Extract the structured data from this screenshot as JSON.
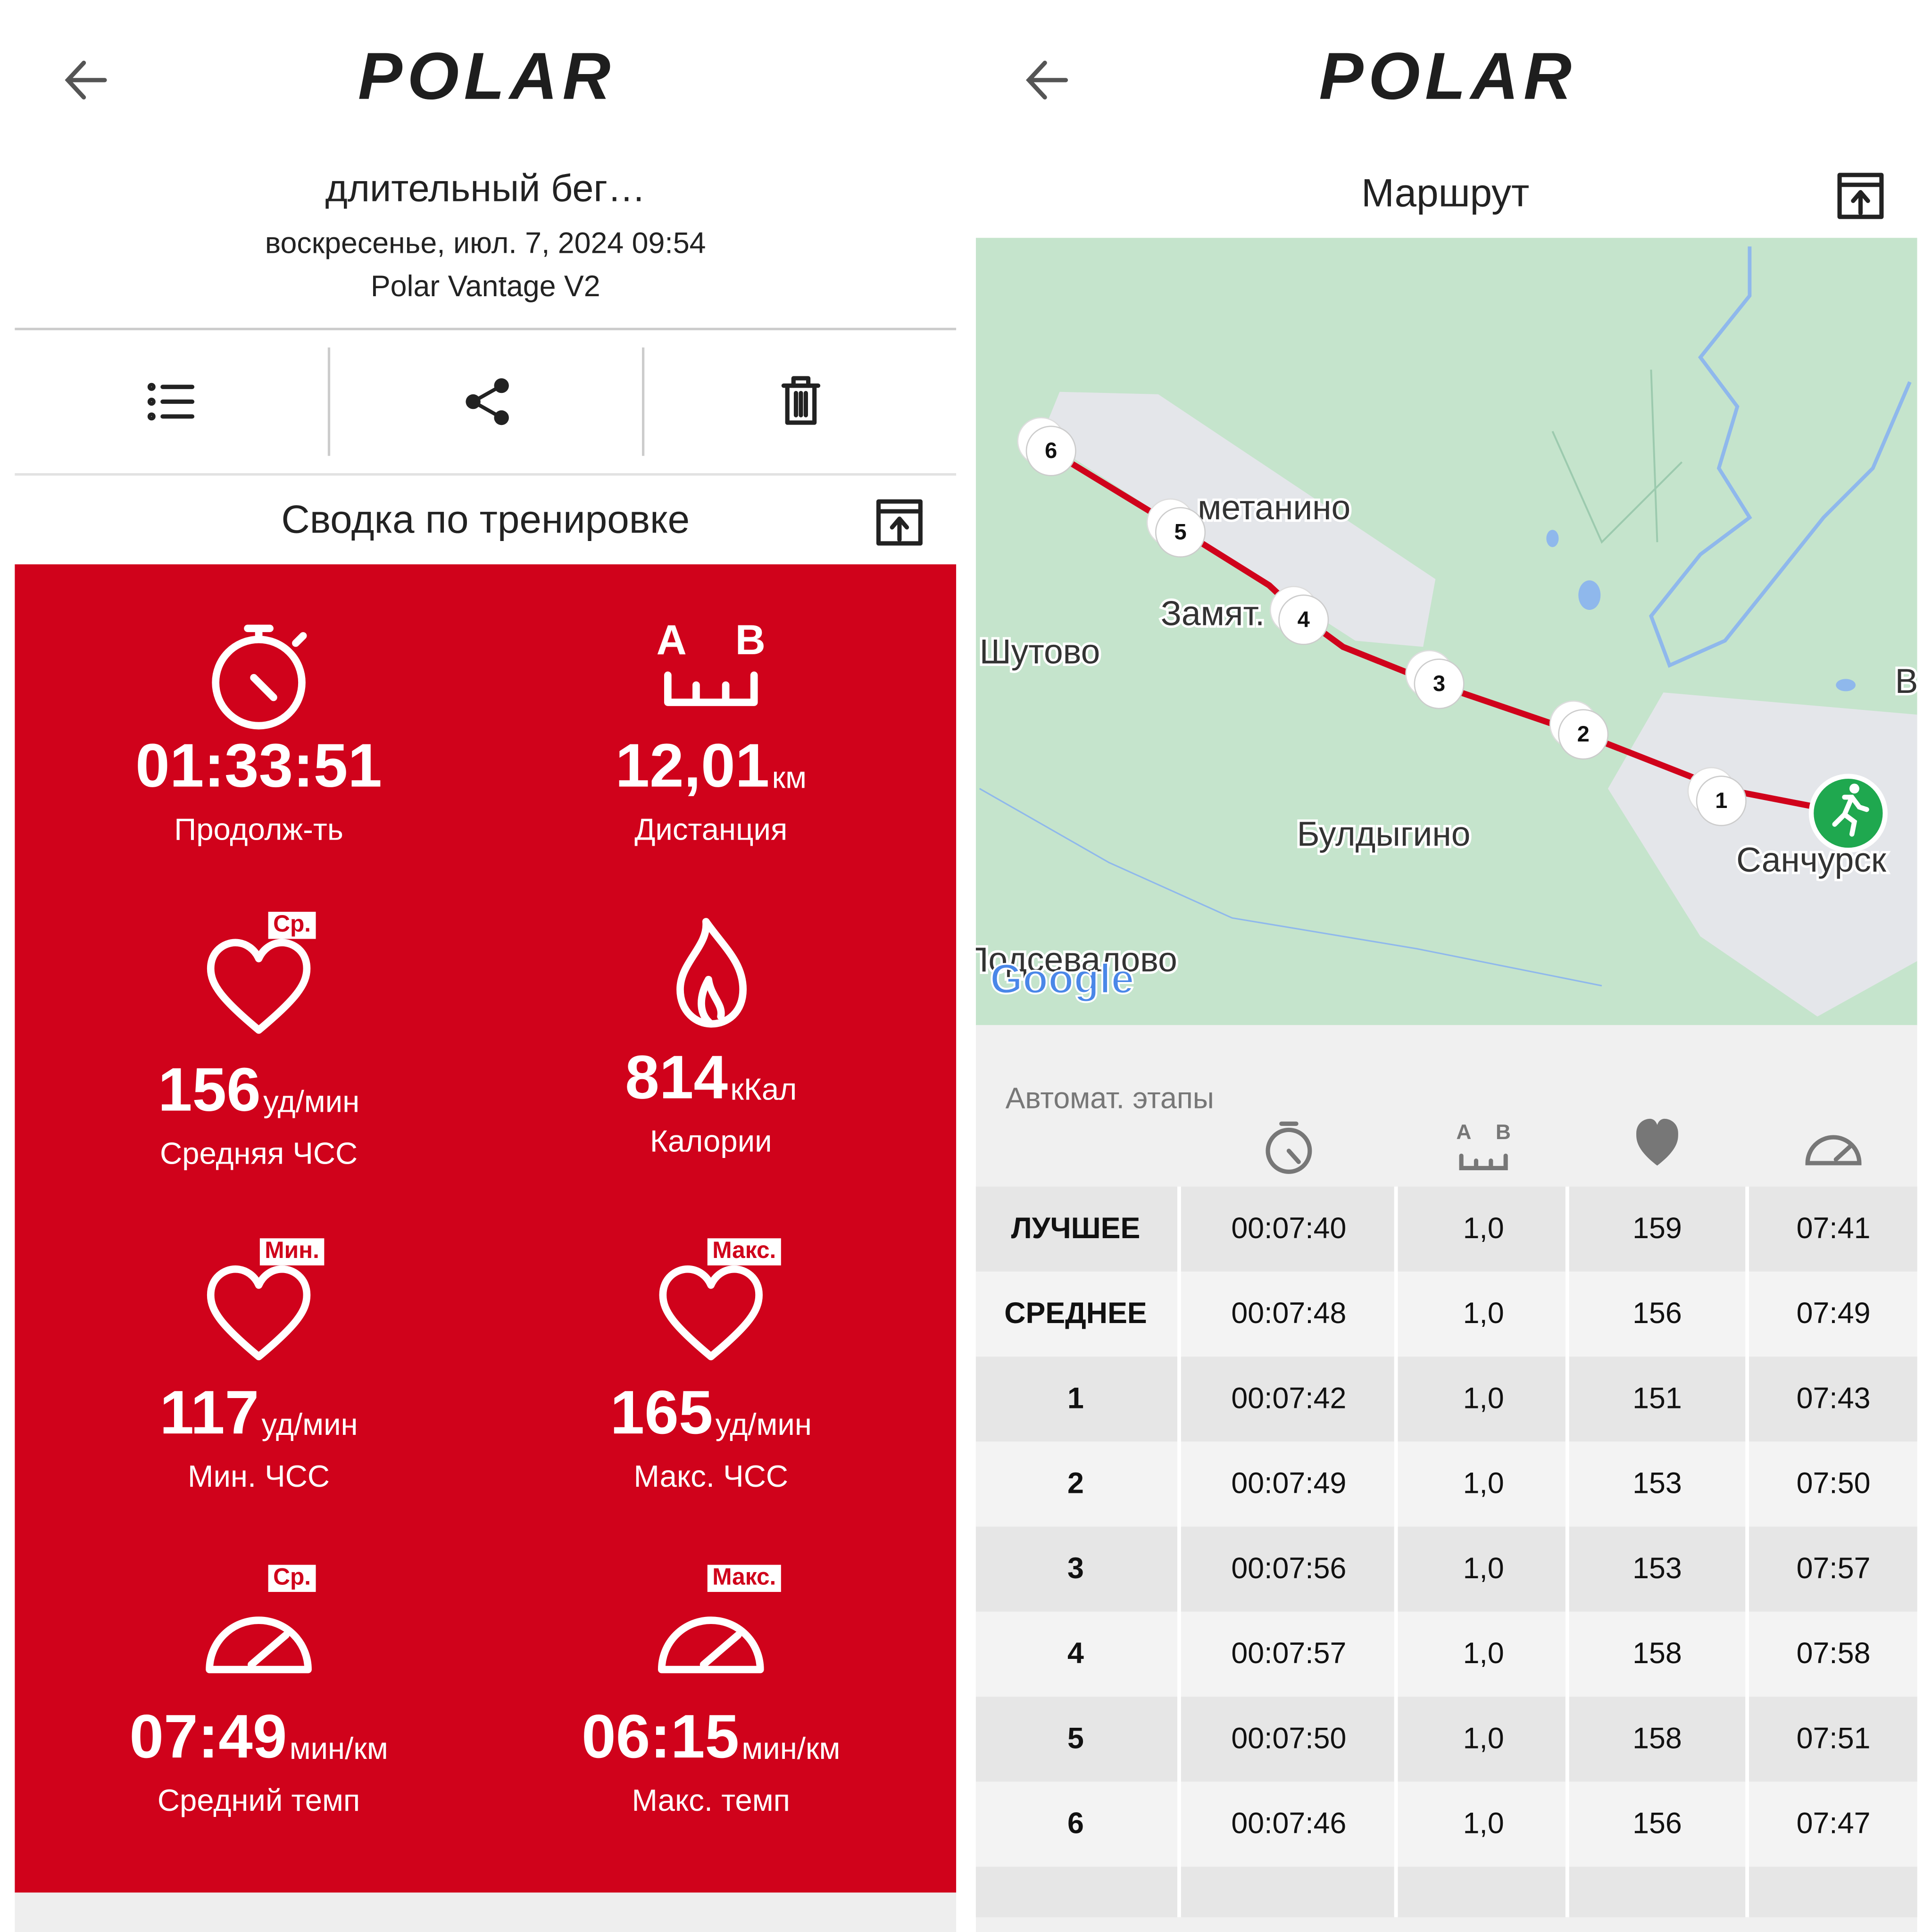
{
  "left": {
    "logo": "POLAR",
    "title": "длительный  бег…",
    "date": "воскресенье, июл. 7, 2024 09:54",
    "device": "Polar Vantage V2",
    "summary_title": "Сводка по тренировке",
    "stats": [
      {
        "value": "01:33:51",
        "label": "Продолж-ть"
      },
      {
        "icon_labels": [
          "A",
          "B"
        ],
        "value": "12,01",
        "unit": "км",
        "label": "Дистанция"
      },
      {
        "badge": "Ср.",
        "value": "156",
        "unit": "уд/мин",
        "label": "Средняя ЧСС"
      },
      {
        "value": "814",
        "unit": "кКал",
        "label": "Калории"
      },
      {
        "badge": "Мин.",
        "value": "117",
        "unit": "уд/мин",
        "label": "Мин. ЧСС"
      },
      {
        "badge": "Макс.",
        "value": "165",
        "unit": "уд/мин",
        "label": "Макс. ЧСС"
      },
      {
        "badge": "Ср.",
        "value": "07:49",
        "unit": "мин/км",
        "label": "Средний темп"
      },
      {
        "badge": "Макс.",
        "value": "06:15",
        "unit": "мин/км",
        "label": "Макс. темп"
      }
    ]
  },
  "right": {
    "logo": "POLAR",
    "title": "Маршрут",
    "map": {
      "places": [
        "метанино",
        "Замят.",
        "Шутово",
        "Булдыгино",
        "Санчурск",
        "Подсевалово",
        "В"
      ],
      "markers": [
        "1",
        "2",
        "3",
        "4",
        "5",
        "6"
      ],
      "attribution": "Google"
    },
    "laps": {
      "title": "Автомат. этапы",
      "distance_icon_labels": [
        "A",
        "B"
      ],
      "rows": [
        [
          "ЛУЧШЕЕ",
          "00:07:40",
          "1,0",
          "159",
          "07:41"
        ],
        [
          "СРЕДНЕЕ",
          "00:07:48",
          "1,0",
          "156",
          "07:49"
        ],
        [
          "1",
          "00:07:42",
          "1,0",
          "151",
          "07:43"
        ],
        [
          "2",
          "00:07:49",
          "1,0",
          "153",
          "07:50"
        ],
        [
          "3",
          "00:07:56",
          "1,0",
          "153",
          "07:57"
        ],
        [
          "4",
          "00:07:57",
          "1,0",
          "158",
          "07:58"
        ],
        [
          "5",
          "00:07:50",
          "1,0",
          "158",
          "07:51"
        ],
        [
          "6",
          "00:07:46",
          "1,0",
          "156",
          "07:47"
        ]
      ]
    }
  }
}
